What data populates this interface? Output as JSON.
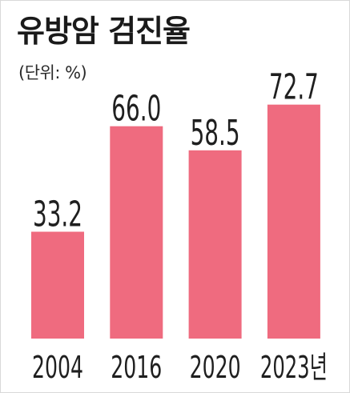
{
  "chart_data": {
    "type": "bar",
    "title": "유방암 검진율",
    "subtitle": "(단위: %)",
    "categories": [
      "2004",
      "2016",
      "2020",
      "2023년"
    ],
    "values": [
      33.2,
      66.0,
      58.5,
      72.7
    ],
    "value_labels": [
      "33.2",
      "66.0",
      "58.5",
      "72.7"
    ],
    "ylim": [
      0,
      100
    ],
    "grid": false,
    "bar_color": "#ef6b7f",
    "text_color": "#1f1f1f"
  }
}
